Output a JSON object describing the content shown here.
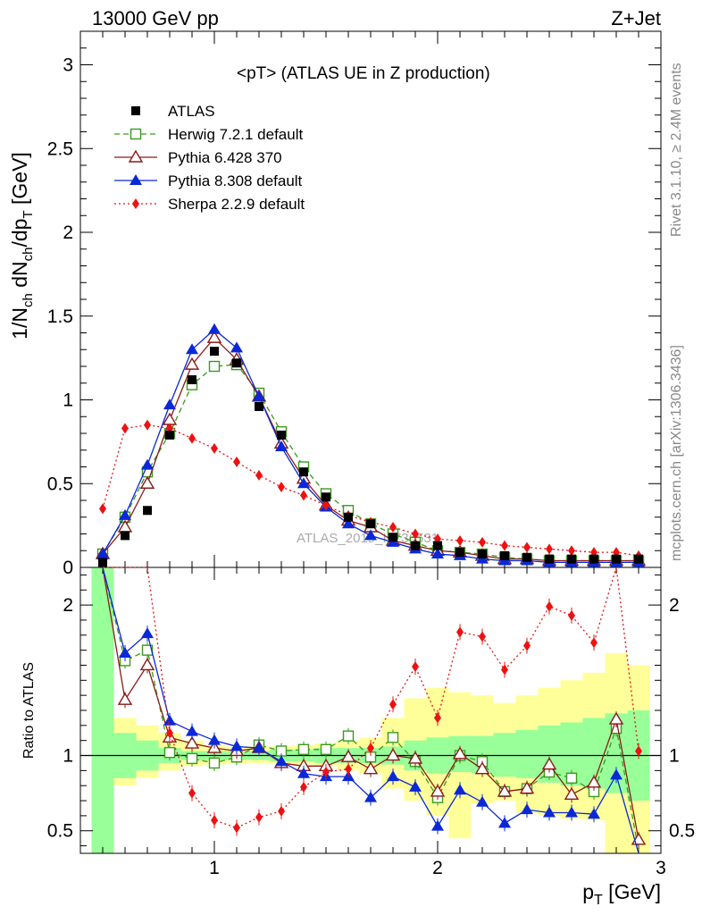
{
  "header": {
    "left": "13000 GeV pp",
    "right": "Z+Jet"
  },
  "side_labels": {
    "rivet": "Rivet 3.1.10, ≥ 2.4M events",
    "mcplots": "mcplots.cern.ch [arXiv:1306.3436]"
  },
  "watermark": "ATLAS_2019_I1736531",
  "chart_data": {
    "type": "line",
    "title": "<pT> (ATLAS UE in Z production)",
    "xlabel": "p",
    "xlabel_sub": "T",
    "xlabel_unit": " [GeV]",
    "ylabel": "1/N",
    "ylabel_sub1": "ch",
    "ylabel_mid": " dN",
    "ylabel_sub2": "ch",
    "ylabel_mid2": "/dp",
    "ylabel_sub3": "T",
    "ylabel_unit": " [GeV]",
    "ratio_ylabel": "Ratio to ATLAS",
    "xlim": [
      0.4,
      3.0
    ],
    "ylim": [
      0,
      3.2
    ],
    "ratio_ylim": [
      0.35,
      2.25
    ],
    "x_ticks": [
      "1",
      "2",
      "3"
    ],
    "y_ticks": [
      "0",
      "0.5",
      "1",
      "1.5",
      "2",
      "2.5",
      "3"
    ],
    "ratio_ticks": [
      "0.5",
      "1",
      "2"
    ],
    "legend": {
      "placement": "top-left",
      "entries": [
        "ATLAS",
        "Herwig 7.2.1 default",
        "Pythia 6.428 370",
        "Pythia 8.308 default",
        "Sherpa 2.2.9 default"
      ]
    },
    "x": [
      0.5,
      0.6,
      0.7,
      0.8,
      0.9,
      1.0,
      1.1,
      1.2,
      1.3,
      1.4,
      1.5,
      1.6,
      1.7,
      1.8,
      1.9,
      2.0,
      2.1,
      2.2,
      2.3,
      2.4,
      2.5,
      2.6,
      2.7,
      2.8,
      2.9
    ],
    "data": [
      0.03,
      0.19,
      0.34,
      0.79,
      1.12,
      1.29,
      1.22,
      0.96,
      0.79,
      0.57,
      0.42,
      0.3,
      0.26,
      0.18,
      0.13,
      0.13,
      0.09,
      0.08,
      0.07,
      0.06,
      0.05,
      0.05,
      0.05,
      0.05,
      0.05
    ],
    "band_edges": [
      0.45,
      0.55,
      0.65,
      0.75,
      0.85,
      0.95,
      1.05,
      1.15,
      1.25,
      1.35,
      1.45,
      1.55,
      1.65,
      1.75,
      1.85,
      1.95,
      2.05,
      2.15,
      2.25,
      2.35,
      2.45,
      2.55,
      2.65,
      2.75,
      2.85,
      2.95
    ],
    "stat_band_lo": [
      0.3,
      0.85,
      0.9,
      0.95,
      0.97,
      0.97,
      0.97,
      0.97,
      0.96,
      0.96,
      0.95,
      0.95,
      0.95,
      0.94,
      0.9,
      0.88,
      0.89,
      0.88,
      0.86,
      0.85,
      0.82,
      0.8,
      0.78,
      0.75,
      0.7
    ],
    "stat_band_hi": [
      2.3,
      1.15,
      1.1,
      1.05,
      1.03,
      1.03,
      1.03,
      1.03,
      1.04,
      1.04,
      1.05,
      1.05,
      1.05,
      1.06,
      1.1,
      1.12,
      1.13,
      1.13,
      1.15,
      1.17,
      1.2,
      1.22,
      1.25,
      1.28,
      1.3
    ],
    "tot_band_lo": [
      0.3,
      0.8,
      0.85,
      0.9,
      0.93,
      0.94,
      0.95,
      0.95,
      0.95,
      0.94,
      0.93,
      0.9,
      0.88,
      0.78,
      0.7,
      0.6,
      0.45,
      0.68,
      0.7,
      0.62,
      0.6,
      0.58,
      0.57,
      0.3,
      0.3
    ],
    "tot_band_hi": [
      2.3,
      1.25,
      1.2,
      1.15,
      1.1,
      1.07,
      1.06,
      1.06,
      1.06,
      1.07,
      1.08,
      1.1,
      1.12,
      1.25,
      1.38,
      1.45,
      1.42,
      1.4,
      1.35,
      1.4,
      1.45,
      1.5,
      1.55,
      1.68,
      1.6
    ],
    "series": [
      {
        "name": "Herwig 7.2.1 default",
        "color": "#3a9a1e",
        "dash": "6,4",
        "marker": "open-square",
        "values": [
          0.08,
          0.3,
          0.57,
          0.8,
          1.09,
          1.2,
          1.21,
          1.04,
          0.81,
          0.6,
          0.44,
          0.34,
          0.26,
          0.2,
          0.15,
          0.1,
          0.09,
          0.08,
          0.06,
          0.05,
          0.04,
          0.04,
          0.04,
          0.04,
          0.04
        ],
        "ratio": [
          2.6,
          1.63,
          1.7,
          1.02,
          0.98,
          0.95,
          0.99,
          1.07,
          1.03,
          1.04,
          1.04,
          1.13,
          0.99,
          1.12,
          0.96,
          0.72,
          1.0,
          0.96,
          0.76,
          0.78,
          0.89,
          0.85,
          0.76,
          1.18,
          0.37
        ]
      },
      {
        "name": "Pythia 6.428 370",
        "color": "#8b1a1a",
        "dash": "",
        "marker": "open-triangle",
        "values": [
          0.08,
          0.24,
          0.5,
          0.88,
          1.21,
          1.37,
          1.24,
          1.02,
          0.74,
          0.53,
          0.37,
          0.28,
          0.24,
          0.16,
          0.13,
          0.1,
          0.09,
          0.07,
          0.05,
          0.05,
          0.04,
          0.04,
          0.04,
          0.04,
          0.04
        ],
        "ratio": [
          2.6,
          1.37,
          1.6,
          1.12,
          1.08,
          1.05,
          1.03,
          1.05,
          0.95,
          0.93,
          0.93,
          0.99,
          0.91,
          1.0,
          0.98,
          0.76,
          1.01,
          0.91,
          0.76,
          0.78,
          0.94,
          0.74,
          0.82,
          1.24,
          0.44
        ]
      },
      {
        "name": "Pythia 8.308 default",
        "color": "#0a28d8",
        "dash": "",
        "marker": "filled-triangle",
        "values": [
          0.08,
          0.31,
          0.61,
          0.97,
          1.3,
          1.42,
          1.31,
          1.02,
          0.72,
          0.5,
          0.36,
          0.26,
          0.19,
          0.15,
          0.11,
          0.08,
          0.07,
          0.05,
          0.04,
          0.04,
          0.03,
          0.03,
          0.03,
          0.03,
          0.03
        ],
        "ratio": [
          2.6,
          1.68,
          1.81,
          1.23,
          1.16,
          1.1,
          1.06,
          1.05,
          0.96,
          0.88,
          0.86,
          0.86,
          0.72,
          0.86,
          0.79,
          0.53,
          0.77,
          0.69,
          0.55,
          0.64,
          0.62,
          0.62,
          0.61,
          0.87,
          0.3
        ]
      },
      {
        "name": "Sherpa 2.2.9 default",
        "color": "#ee1111",
        "dash": "2,3",
        "marker": "filled-diamond",
        "values": [
          0.35,
          0.83,
          0.85,
          0.83,
          0.77,
          0.71,
          0.63,
          0.55,
          0.48,
          0.43,
          0.37,
          0.31,
          0.27,
          0.24,
          0.2,
          0.17,
          0.16,
          0.15,
          0.13,
          0.12,
          0.11,
          0.1,
          0.09,
          0.09,
          0.07
        ],
        "ratio": [
          4.0,
          3.8,
          2.5,
          1.15,
          0.75,
          0.57,
          0.52,
          0.59,
          0.63,
          0.79,
          0.89,
          0.91,
          1.05,
          1.34,
          1.59,
          1.25,
          1.82,
          1.79,
          1.57,
          1.73,
          1.99,
          1.93,
          1.75,
          2.4,
          1.03
        ]
      }
    ]
  }
}
